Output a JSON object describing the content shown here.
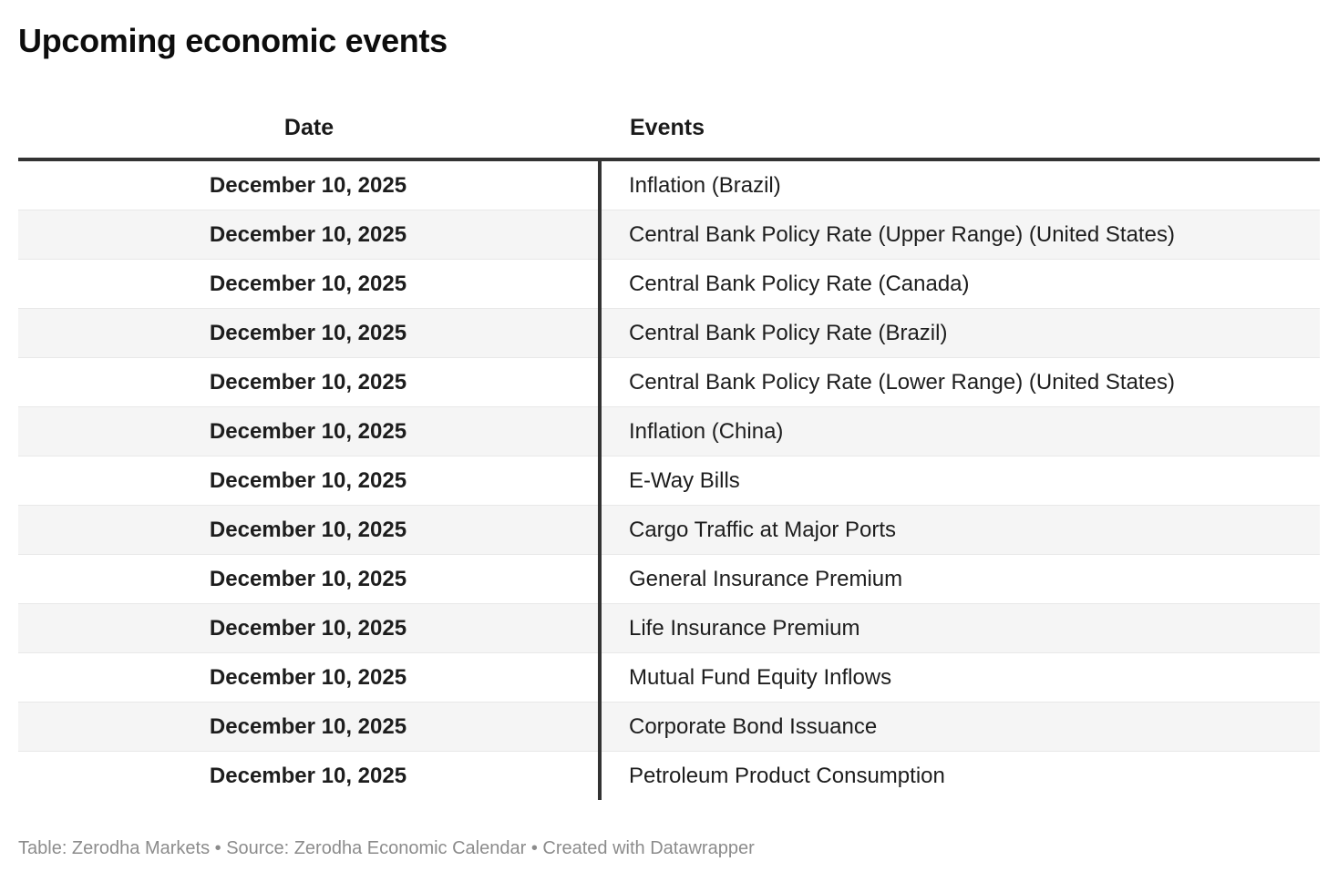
{
  "title": "Upcoming economic events",
  "header": {
    "date_label": "Date",
    "events_label": "Events"
  },
  "chart_data": {
    "type": "table",
    "title": "Upcoming economic events",
    "columns": [
      "Date",
      "Events"
    ],
    "rows": [
      [
        "December 10, 2025",
        "Inflation (Brazil)"
      ],
      [
        "December 10, 2025",
        "Central Bank Policy Rate (Upper Range) (United States)"
      ],
      [
        "December 10, 2025",
        "Central Bank Policy Rate (Canada)"
      ],
      [
        "December 10, 2025",
        "Central Bank Policy Rate (Brazil)"
      ],
      [
        "December 10, 2025",
        "Central Bank Policy Rate (Lower Range) (United States)"
      ],
      [
        "December 10, 2025",
        "Inflation (China)"
      ],
      [
        "December 10, 2025",
        "E-Way Bills"
      ],
      [
        "December 10, 2025",
        "Cargo Traffic at Major Ports"
      ],
      [
        "December 10, 2025",
        "General Insurance Premium"
      ],
      [
        "December 10, 2025",
        "Life Insurance Premium"
      ],
      [
        "December 10, 2025",
        "Mutual Fund Equity Inflows"
      ],
      [
        "December 10, 2025",
        "Corporate Bond Issuance"
      ],
      [
        "December 10, 2025",
        "Petroleum Product Consumption"
      ]
    ],
    "layout": {
      "date_column_align": "center",
      "events_column_align": "left",
      "alternating_row_shading": true,
      "grid": "horizontal-separators-with-single-column-divider"
    }
  },
  "footer": {
    "text": "Table: Zerodha Markets • Source: Zerodha Economic Calendar • Created with Datawrapper"
  },
  "colors": {
    "background": "#ffffff",
    "title_text": "#0d0d0d",
    "body_text": "#1d1d1d",
    "header_rule": "#333333",
    "column_divider": "#333333",
    "row_alt_background": "#f5f5f5",
    "row_separator": "#e8e8e8",
    "footer_text": "#8c8c8c"
  }
}
